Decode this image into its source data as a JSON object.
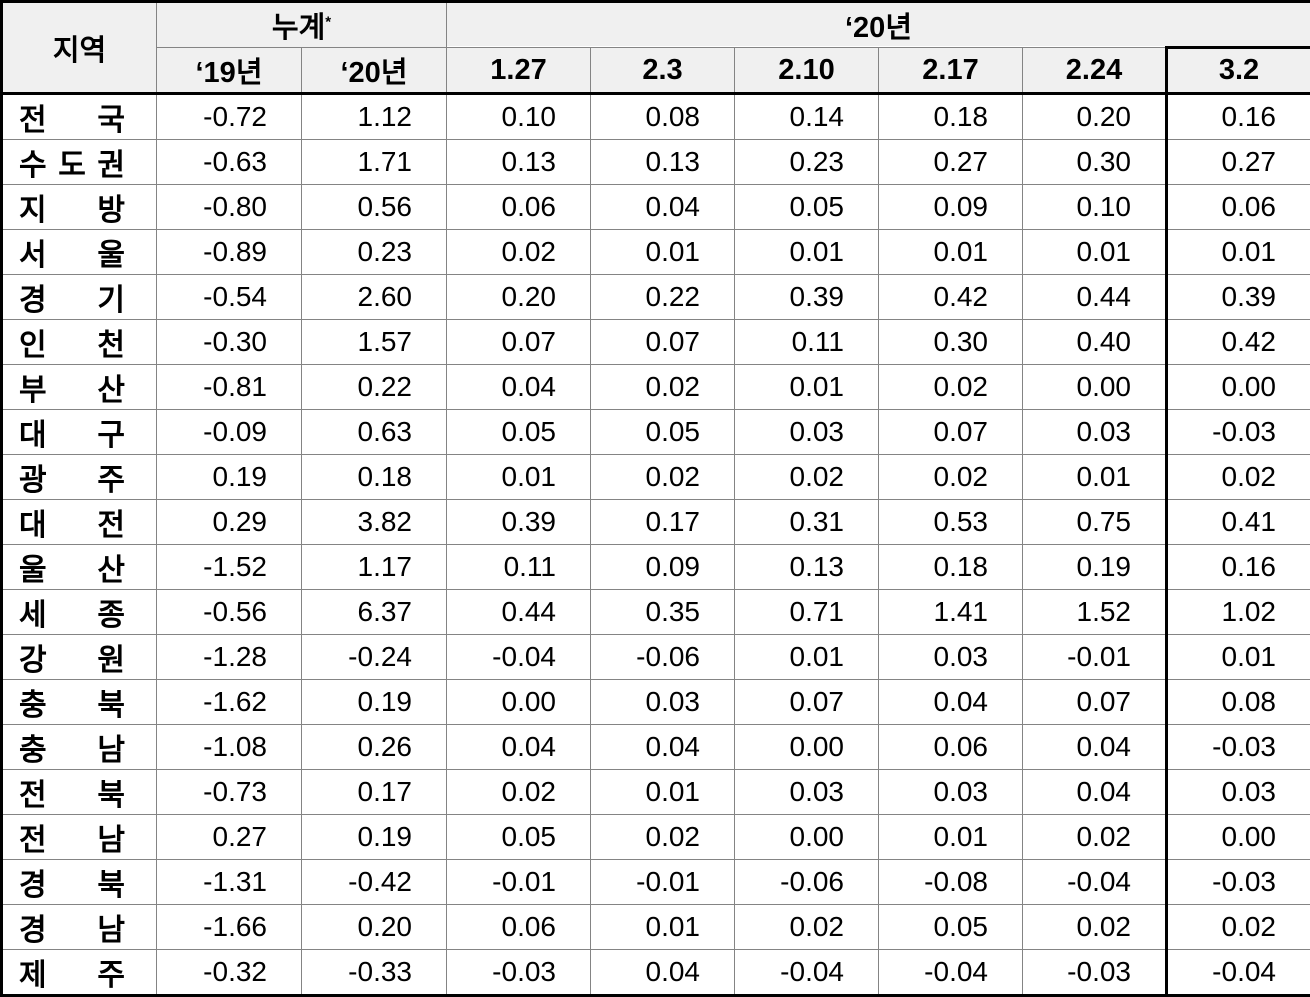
{
  "table": {
    "corner_label": "지역",
    "group_headers": {
      "cumulative_label": "누계",
      "cumulative_note": "*",
      "year_label": "‘20년"
    },
    "sub_headers": {
      "y19": "‘19년",
      "y20": "‘20년"
    },
    "date_headers": [
      "1.27",
      "2.3",
      "2.10",
      "2.17",
      "2.24",
      "3.2"
    ],
    "columns": [
      "지역",
      "누계 ‘19년",
      "누계 ‘20년",
      "1.27",
      "2.3",
      "2.10",
      "2.17",
      "2.24",
      "3.2"
    ],
    "rows": [
      {
        "region": "전국",
        "values": [
          "-0.72",
          "1.12",
          "0.10",
          "0.08",
          "0.14",
          "0.18",
          "0.20",
          "0.16"
        ]
      },
      {
        "region": "수도권",
        "values": [
          "-0.63",
          "1.71",
          "0.13",
          "0.13",
          "0.23",
          "0.27",
          "0.30",
          "0.27"
        ]
      },
      {
        "region": "지방",
        "values": [
          "-0.80",
          "0.56",
          "0.06",
          "0.04",
          "0.05",
          "0.09",
          "0.10",
          "0.06"
        ]
      },
      {
        "region": "서울",
        "values": [
          "-0.89",
          "0.23",
          "0.02",
          "0.01",
          "0.01",
          "0.01",
          "0.01",
          "0.01"
        ]
      },
      {
        "region": "경기",
        "values": [
          "-0.54",
          "2.60",
          "0.20",
          "0.22",
          "0.39",
          "0.42",
          "0.44",
          "0.39"
        ]
      },
      {
        "region": "인천",
        "values": [
          "-0.30",
          "1.57",
          "0.07",
          "0.07",
          "0.11",
          "0.30",
          "0.40",
          "0.42"
        ]
      },
      {
        "region": "부산",
        "values": [
          "-0.81",
          "0.22",
          "0.04",
          "0.02",
          "0.01",
          "0.02",
          "0.00",
          "0.00"
        ]
      },
      {
        "region": "대구",
        "values": [
          "-0.09",
          "0.63",
          "0.05",
          "0.05",
          "0.03",
          "0.07",
          "0.03",
          "-0.03"
        ]
      },
      {
        "region": "광주",
        "values": [
          "0.19",
          "0.18",
          "0.01",
          "0.02",
          "0.02",
          "0.02",
          "0.01",
          "0.02"
        ]
      },
      {
        "region": "대전",
        "values": [
          "0.29",
          "3.82",
          "0.39",
          "0.17",
          "0.31",
          "0.53",
          "0.75",
          "0.41"
        ]
      },
      {
        "region": "울산",
        "values": [
          "-1.52",
          "1.17",
          "0.11",
          "0.09",
          "0.13",
          "0.18",
          "0.19",
          "0.16"
        ]
      },
      {
        "region": "세종",
        "values": [
          "-0.56",
          "6.37",
          "0.44",
          "0.35",
          "0.71",
          "1.41",
          "1.52",
          "1.02"
        ]
      },
      {
        "region": "강원",
        "values": [
          "-1.28",
          "-0.24",
          "-0.04",
          "-0.06",
          "0.01",
          "0.03",
          "-0.01",
          "0.01"
        ]
      },
      {
        "region": "충북",
        "values": [
          "-1.62",
          "0.19",
          "0.00",
          "0.03",
          "0.07",
          "0.04",
          "0.07",
          "0.08"
        ]
      },
      {
        "region": "충남",
        "values": [
          "-1.08",
          "0.26",
          "0.04",
          "0.04",
          "0.00",
          "0.06",
          "0.04",
          "-0.03"
        ]
      },
      {
        "region": "전북",
        "values": [
          "-0.73",
          "0.17",
          "0.02",
          "0.01",
          "0.03",
          "0.03",
          "0.04",
          "0.03"
        ]
      },
      {
        "region": "전남",
        "values": [
          "0.27",
          "0.19",
          "0.05",
          "0.02",
          "0.00",
          "0.01",
          "0.02",
          "0.00"
        ]
      },
      {
        "region": "경북",
        "values": [
          "-1.31",
          "-0.42",
          "-0.01",
          "-0.01",
          "-0.06",
          "-0.08",
          "-0.04",
          "-0.03"
        ]
      },
      {
        "region": "경남",
        "values": [
          "-1.66",
          "0.20",
          "0.06",
          "0.01",
          "0.02",
          "0.05",
          "0.02",
          "0.02"
        ]
      },
      {
        "region": "제주",
        "values": [
          "-0.32",
          "-0.33",
          "-0.03",
          "0.04",
          "-0.04",
          "-0.04",
          "-0.03",
          "-0.04"
        ]
      }
    ]
  }
}
